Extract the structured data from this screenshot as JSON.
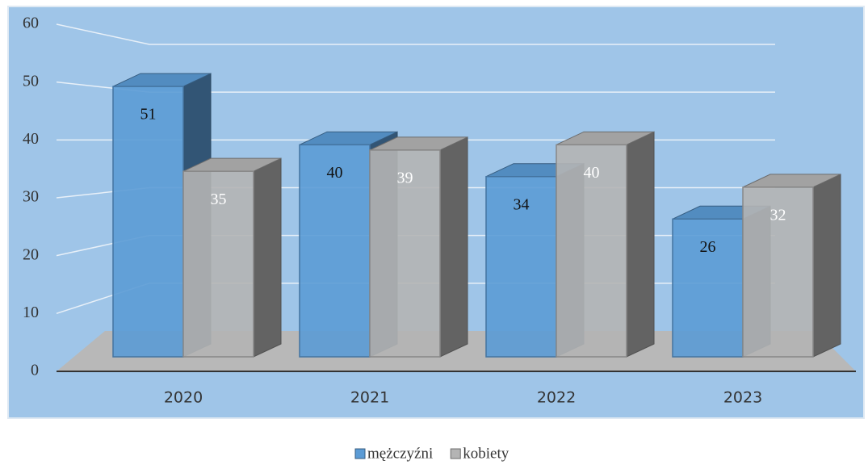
{
  "chart_data": {
    "type": "bar3d",
    "categories": [
      "2020",
      "2021",
      "2022",
      "2023"
    ],
    "series": [
      {
        "name": "mężczyźni",
        "color": "#5b9bd5",
        "values": [
          51,
          40,
          34,
          26
        ]
      },
      {
        "name": "kobiety",
        "color": "#b4b4b4",
        "values": [
          35,
          39,
          40,
          32
        ]
      }
    ],
    "ylim": [
      0,
      60
    ],
    "yticks": [
      0,
      10,
      20,
      30,
      40,
      50,
      60
    ],
    "grid": true,
    "legend": "bottom"
  }
}
